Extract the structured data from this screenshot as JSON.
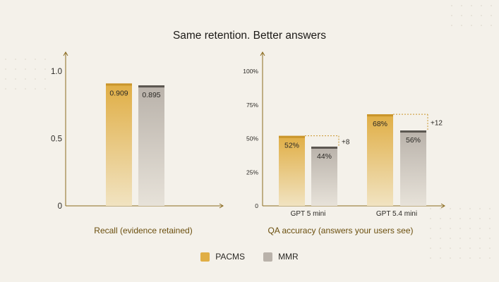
{
  "title": "Same retention. Better answers",
  "colors": {
    "pacms": "#e0ae45",
    "pacms_cap": "#c9952b",
    "mmr": "#b9b2aa",
    "mmr_cap": "#5b5650",
    "axis": "#8a6a1e",
    "text": "#2a2824",
    "dots": "#d9d3c6"
  },
  "legend": [
    {
      "name": "PACMS",
      "color": "#e0ae45"
    },
    {
      "name": "MMR",
      "color": "#b9b2aa"
    }
  ],
  "chart_data": [
    {
      "type": "bar",
      "title": "",
      "xlabel": "Recall (evidence retained)",
      "ylabel": "",
      "ylim": [
        0,
        1.0
      ],
      "yticks": [
        "0",
        "0.5",
        "1.0"
      ],
      "categories": [
        ""
      ],
      "series": [
        {
          "name": "PACMS",
          "values": [
            0.909
          ],
          "labels": [
            "0.909"
          ]
        },
        {
          "name": "MMR",
          "values": [
            0.895
          ],
          "labels": [
            "0.895"
          ]
        }
      ]
    },
    {
      "type": "bar",
      "title": "",
      "xlabel": "QA accuracy (answers your users see)",
      "ylabel": "",
      "ylim": [
        0,
        100
      ],
      "yticks": [
        "0",
        "25%",
        "50%",
        "75%",
        "100%"
      ],
      "categories": [
        "GPT 5 mini",
        "GPT 5.4 mini"
      ],
      "series": [
        {
          "name": "PACMS",
          "values": [
            52,
            68
          ],
          "labels": [
            "52%",
            "68%"
          ]
        },
        {
          "name": "MMR",
          "values": [
            44,
            56
          ],
          "labels": [
            "44%",
            "56%"
          ]
        }
      ],
      "annotations": [
        "+8",
        "+12"
      ]
    }
  ]
}
